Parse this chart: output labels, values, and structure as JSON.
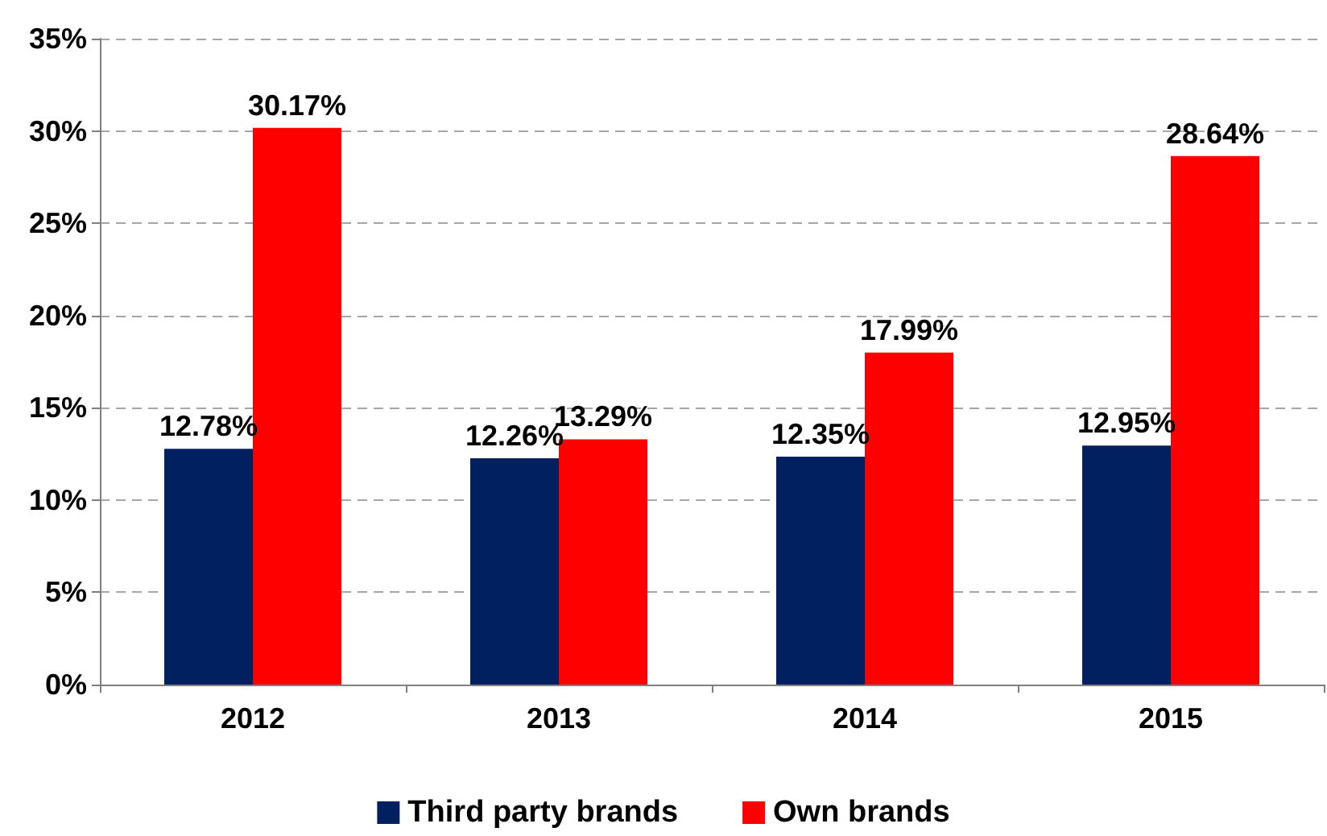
{
  "chart_data": {
    "type": "bar",
    "categories": [
      "2012",
      "2013",
      "2014",
      "2015"
    ],
    "series": [
      {
        "name": "Third party brands",
        "color": "#002060",
        "values": [
          12.78,
          12.26,
          12.35,
          12.95
        ],
        "value_labels": [
          "12.78%",
          "12.26%",
          "12.35%",
          "12.95%"
        ]
      },
      {
        "name": "Own brands",
        "color": "#ff0000",
        "values": [
          30.17,
          13.29,
          17.99,
          28.64
        ],
        "value_labels": [
          "30.17%",
          "13.29%",
          "17.99%",
          "28.64%"
        ]
      }
    ],
    "ylim": [
      0,
      35
    ],
    "yticks": [
      {
        "value": 0,
        "label": "0%"
      },
      {
        "value": 5,
        "label": "5%"
      },
      {
        "value": 10,
        "label": "10%"
      },
      {
        "value": 15,
        "label": "15%"
      },
      {
        "value": 20,
        "label": "20%"
      },
      {
        "value": 25,
        "label": "25%"
      },
      {
        "value": 30,
        "label": "30%"
      },
      {
        "value": 35,
        "label": "35%"
      }
    ],
    "grid": "y",
    "legend": "bottom"
  }
}
